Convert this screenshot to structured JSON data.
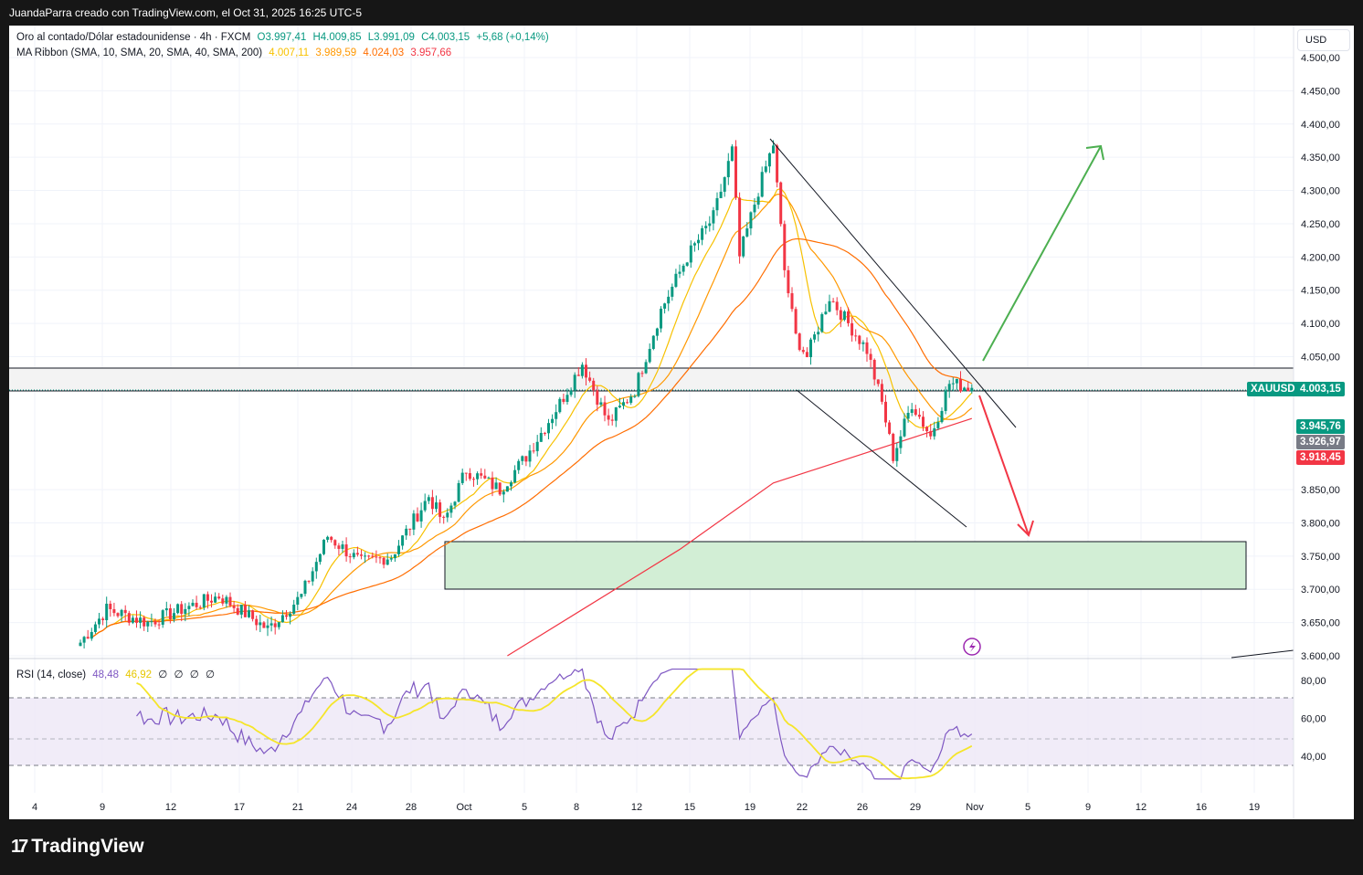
{
  "header": {
    "attribution": "JuandaParra creado con TradingView.com, el Oct 31, 2025 16:25 UTC-5"
  },
  "legend": {
    "symbol": "Oro al contado/Dólar estadounidense · 4h · FXCM",
    "o": "O3.997,41",
    "h": "H4.009,85",
    "l": "L3.991,09",
    "c": "C4.003,15",
    "chg": "+5,68 (+0,14%)",
    "ma_label": "MA Ribbon (SMA, 10, SMA, 20, SMA, 40, SMA, 200)",
    "ma1": "4.007,11",
    "ma2": "3.989,59",
    "ma3": "4.024,03",
    "ma4": "3.957,66"
  },
  "rsi_legend": {
    "label": "RSI (14, close)",
    "rsi": "48,48",
    "ma": "46,92",
    "e1": "∅",
    "e2": "∅",
    "e3": "∅",
    "e4": "∅"
  },
  "currency": "USD",
  "tags": {
    "symbol": "XAUUSD",
    "price": "4.003,15",
    "ma_a": "3.945,76",
    "ma_b": "3.926,97",
    "ma_c": "3.918,45"
  },
  "colors": {
    "up": "#089981",
    "down": "#f23645",
    "ma10": "#f7c100",
    "ma20": "#ff9800",
    "ma40": "#ff6d00",
    "ma200": "#f23645",
    "rsi": "#7e57c2",
    "rsi_ma": "#f5e52a"
  },
  "branding": "TradingView",
  "chart_data": {
    "type": "candlestick",
    "price_ticks": [
      "4.500,00",
      "4.450,00",
      "4.400,00",
      "4.350,00",
      "4.300,00",
      "4.250,00",
      "4.200,00",
      "4.150,00",
      "4.100,00",
      "4.050,00",
      "3.850,00",
      "3.800,00",
      "3.750,00",
      "3.700,00",
      "3.650,00",
      "3.600,00"
    ],
    "price_tick_values": [
      4500,
      4450,
      4400,
      4350,
      4300,
      4250,
      4200,
      4150,
      4100,
      4050,
      3850,
      3800,
      3750,
      3700,
      3650,
      3600
    ],
    "rsi_ticks": [
      "80,00",
      "60,00",
      "40,00"
    ],
    "rsi_tick_values": [
      80,
      60,
      40
    ],
    "x_ticks": [
      "4",
      "9",
      "12",
      "17",
      "21",
      "24",
      "28",
      "Oct",
      "5",
      "8",
      "12",
      "15",
      "19",
      "22",
      "26",
      "29",
      "Nov",
      "5",
      "9",
      "12",
      "16",
      "19"
    ],
    "close_keypoints": [
      [
        0,
        3620
      ],
      [
        7,
        3670
      ],
      [
        18,
        3650
      ],
      [
        27,
        3670
      ],
      [
        37,
        3690
      ],
      [
        45,
        3660
      ],
      [
        50,
        3640
      ],
      [
        59,
        3690
      ],
      [
        66,
        3780
      ],
      [
        75,
        3740
      ],
      [
        83,
        3750
      ],
      [
        93,
        3840
      ],
      [
        97,
        3800
      ],
      [
        103,
        3880
      ],
      [
        112,
        3850
      ],
      [
        119,
        3900
      ],
      [
        128,
        3980
      ],
      [
        134,
        4040
      ],
      [
        141,
        3950
      ],
      [
        148,
        4000
      ],
      [
        155,
        4120
      ],
      [
        162,
        4200
      ],
      [
        169,
        4260
      ],
      [
        174,
        4360
      ],
      [
        176,
        4200
      ],
      [
        181,
        4300
      ],
      [
        185,
        4370
      ],
      [
        188,
        4180
      ],
      [
        191,
        4080
      ],
      [
        194,
        4050
      ],
      [
        200,
        4140
      ],
      [
        205,
        4100
      ],
      [
        210,
        4060
      ],
      [
        214,
        3980
      ],
      [
        217,
        3900
      ],
      [
        222,
        3980
      ],
      [
        227,
        3930
      ],
      [
        232,
        4010
      ],
      [
        238,
        4003
      ]
    ],
    "sma200_keypoints": [
      [
        114,
        3600
      ],
      [
        160,
        3760
      ],
      [
        185,
        3860
      ],
      [
        238,
        3957
      ]
    ],
    "support_zone": [
      3700,
      3770
    ],
    "resistance_zone": [
      4003,
      4037
    ]
  }
}
